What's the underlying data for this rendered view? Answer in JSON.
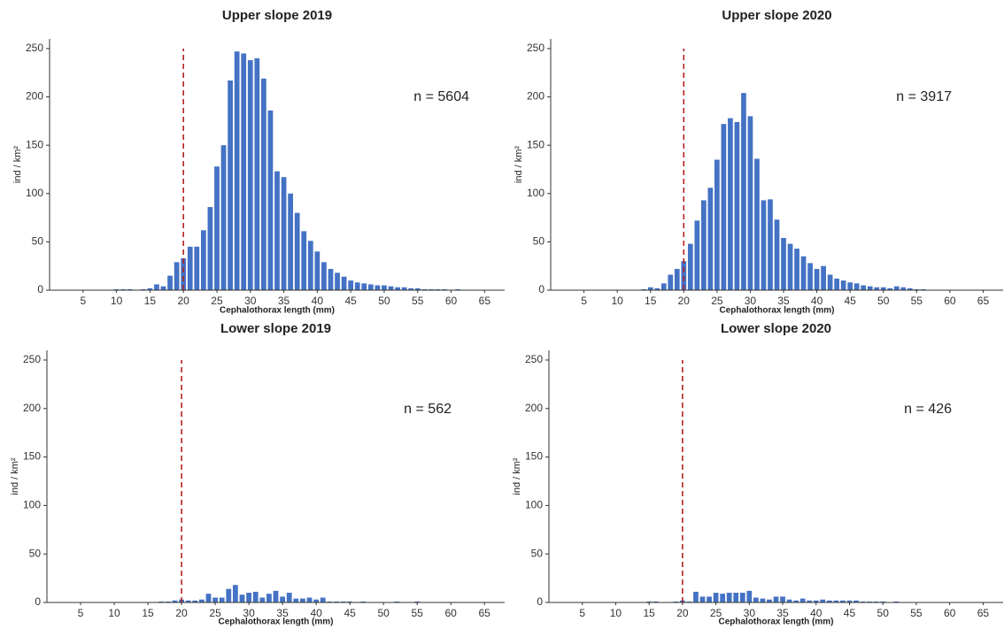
{
  "chart_data": [
    {
      "type": "bar",
      "title": "Upper slope 2019",
      "xlabel": "Cephalothorax length (mm)",
      "ylabel": "ind / km²",
      "annotation": "n = 5604",
      "color": "#4472c4",
      "vline": 20,
      "x": [
        10,
        11,
        12,
        13,
        14,
        15,
        16,
        17,
        18,
        19,
        20,
        21,
        22,
        23,
        24,
        25,
        26,
        27,
        28,
        29,
        30,
        31,
        32,
        33,
        34,
        35,
        36,
        37,
        38,
        39,
        40,
        41,
        42,
        43,
        44,
        45,
        46,
        47,
        48,
        49,
        50,
        51,
        52,
        53,
        54,
        55,
        56,
        57,
        58,
        59,
        60,
        61,
        62
      ],
      "values": [
        1,
        1,
        1,
        0,
        1,
        2,
        6,
        4,
        15,
        29,
        33,
        45,
        45,
        62,
        86,
        128,
        150,
        217,
        247,
        245,
        238,
        240,
        219,
        186,
        123,
        117,
        100,
        80,
        61,
        51,
        40,
        29,
        22,
        18,
        14,
        10,
        8,
        7,
        6,
        5,
        5,
        4,
        3,
        3,
        2,
        2,
        1,
        1,
        1,
        1,
        0,
        1,
        0
      ],
      "xlim": [
        0,
        68
      ],
      "ylim": [
        0,
        260
      ],
      "xticks": [
        5,
        10,
        15,
        20,
        25,
        30,
        35,
        40,
        45,
        50,
        55,
        60,
        65
      ],
      "yticks": [
        0,
        50,
        100,
        150,
        200,
        250
      ]
    },
    {
      "type": "bar",
      "title": "Upper slope 2020",
      "xlabel": "Cephalothorax length (mm)",
      "ylabel": "ind / km²",
      "annotation": "n = 3917",
      "color": "#4472c4",
      "vline": 20,
      "x": [
        10,
        11,
        12,
        13,
        14,
        15,
        16,
        17,
        18,
        19,
        20,
        21,
        22,
        23,
        24,
        25,
        26,
        27,
        28,
        29,
        30,
        31,
        32,
        33,
        34,
        35,
        36,
        37,
        38,
        39,
        40,
        41,
        42,
        43,
        44,
        45,
        46,
        47,
        48,
        49,
        50,
        51,
        52,
        53,
        54,
        55,
        56,
        57,
        58,
        59,
        60,
        61,
        62
      ],
      "values": [
        0,
        0,
        0,
        0,
        1,
        3,
        2,
        7,
        16,
        22,
        30,
        48,
        72,
        93,
        106,
        135,
        172,
        178,
        174,
        204,
        180,
        136,
        93,
        94,
        73,
        54,
        48,
        43,
        35,
        28,
        22,
        25,
        16,
        12,
        10,
        8,
        7,
        5,
        4,
        3,
        3,
        2,
        4,
        3,
        2,
        1,
        1,
        0,
        0,
        0,
        0,
        0,
        0
      ],
      "xlim": [
        0,
        68
      ],
      "ylim": [
        0,
        260
      ],
      "xticks": [
        5,
        10,
        15,
        20,
        25,
        30,
        35,
        40,
        45,
        50,
        55,
        60,
        65
      ],
      "yticks": [
        0,
        50,
        100,
        150,
        200,
        250
      ]
    },
    {
      "type": "bar",
      "title": "Lower slope 2019",
      "xlabel": "Cephalothorax length (mm)",
      "ylabel": "ind / km²",
      "annotation": "n = 562",
      "color": "#4472c4",
      "vline": 20,
      "x": [
        10,
        11,
        12,
        13,
        14,
        15,
        16,
        17,
        18,
        19,
        20,
        21,
        22,
        23,
        24,
        25,
        26,
        27,
        28,
        29,
        30,
        31,
        32,
        33,
        34,
        35,
        36,
        37,
        38,
        39,
        40,
        41,
        42,
        43,
        44,
        45,
        46,
        47,
        48,
        49,
        50,
        51,
        52,
        53,
        54,
        55,
        56,
        57,
        58,
        59,
        60,
        61,
        62
      ],
      "values": [
        0,
        0,
        0,
        0,
        0,
        0,
        0,
        1,
        1,
        2,
        3,
        2,
        2,
        3,
        9,
        5,
        5,
        14,
        18,
        8,
        10,
        11,
        5,
        9,
        12,
        6,
        10,
        4,
        4,
        5,
        3,
        5,
        1,
        1,
        1,
        1,
        0,
        1,
        0,
        0,
        0,
        0,
        1,
        0,
        0,
        1,
        0,
        0,
        0,
        0,
        0,
        0,
        0
      ],
      "xlim": [
        0,
        68
      ],
      "ylim": [
        0,
        260
      ],
      "xticks": [
        5,
        10,
        15,
        20,
        25,
        30,
        35,
        40,
        45,
        50,
        55,
        60,
        65
      ],
      "yticks": [
        0,
        50,
        100,
        150,
        200,
        250
      ]
    },
    {
      "type": "bar",
      "title": "Lower slope 2020",
      "xlabel": "Cephalothorax length (mm)",
      "ylabel": "ind / km²",
      "annotation": "n = 426",
      "color": "#4472c4",
      "vline": 20,
      "x": [
        10,
        11,
        12,
        13,
        14,
        15,
        16,
        17,
        18,
        19,
        20,
        21,
        22,
        23,
        24,
        25,
        26,
        27,
        28,
        29,
        30,
        31,
        32,
        33,
        34,
        35,
        36,
        37,
        38,
        39,
        40,
        41,
        42,
        43,
        44,
        45,
        46,
        47,
        48,
        49,
        50,
        51,
        52,
        53,
        54,
        55,
        56,
        57,
        58,
        59,
        60,
        61,
        62
      ],
      "values": [
        0,
        0,
        0,
        0,
        0,
        1,
        1,
        0,
        0,
        1,
        2,
        1,
        11,
        6,
        6,
        10,
        9,
        10,
        10,
        10,
        12,
        5,
        4,
        3,
        6,
        6,
        3,
        2,
        4,
        2,
        2,
        3,
        2,
        2,
        2,
        2,
        2,
        1,
        1,
        1,
        1,
        0,
        1,
        0,
        0,
        0,
        0,
        0,
        0,
        0,
        0,
        0,
        0
      ],
      "xlim": [
        0,
        68
      ],
      "ylim": [
        0,
        260
      ],
      "xticks": [
        5,
        10,
        15,
        20,
        25,
        30,
        35,
        40,
        45,
        50,
        55,
        60,
        65
      ],
      "yticks": [
        0,
        50,
        100,
        150,
        200,
        250
      ]
    }
  ]
}
